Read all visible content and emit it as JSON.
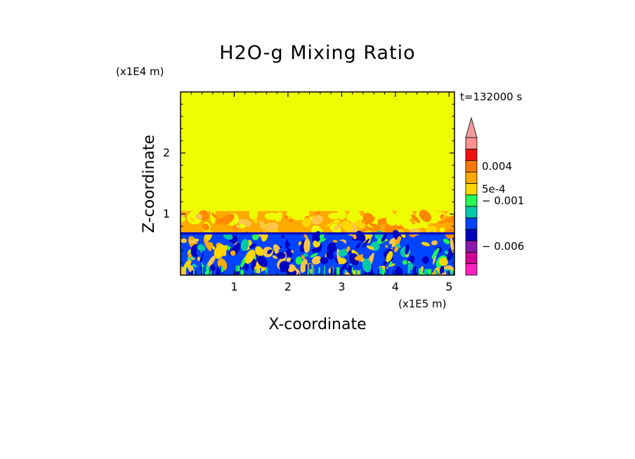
{
  "chart_data": {
    "type": "heatmap",
    "title": "H2O-g Mixing Ratio",
    "xlabel": "X-coordinate",
    "ylabel": "Z-coordinate",
    "x_unit": "(x1E5 m)",
    "y_unit": "(x1E4 m)",
    "xlim": [
      0,
      5.1
    ],
    "ylim": [
      0,
      3.0
    ],
    "x_ticks": [
      1,
      2,
      3,
      4,
      5
    ],
    "x_tick_labels": [
      "1",
      "2",
      "3",
      "4",
      "5"
    ],
    "y_ticks": [
      1,
      2
    ],
    "y_tick_labels": [
      "1",
      "2"
    ],
    "time_label": "t=132000 s",
    "layers": [
      {
        "name": "upper",
        "z_from": 1.05,
        "z_to": 3.0,
        "level": "yellow"
      },
      {
        "name": "mixed",
        "z_from": 0.7,
        "z_to": 1.05,
        "level": "orange"
      },
      {
        "name": "lower",
        "z_from": 0.0,
        "z_to": 0.7,
        "level": "blue"
      }
    ],
    "colorbar": {
      "colors": [
        "#ff22c0",
        "#d40093",
        "#8a16b0",
        "#0000bf",
        "#0044ff",
        "#00c8aa",
        "#22ff55",
        "#ffd700",
        "#ffaa00",
        "#ff7700",
        "#f01010",
        "#ff9090"
      ],
      "arrow_color": "#f39a9a",
      "labels": [
        {
          "text": "0.004",
          "band": 9.5
        },
        {
          "text": "5e-4",
          "band": 7.5
        },
        {
          "text": "− 0.001",
          "band": 6.5
        },
        {
          "text": "− 0.006",
          "band": 2.5
        }
      ]
    },
    "palette": {
      "yellow": "#eefe00",
      "orange": "#ffaa00",
      "dark_orange": "#ff8a00",
      "light_orange": "#ffc54a",
      "gold": "#ffd700",
      "blue": "#0044ff",
      "dark_blue": "#0000bf",
      "teal": "#00c8aa",
      "green": "#22ff55"
    }
  }
}
